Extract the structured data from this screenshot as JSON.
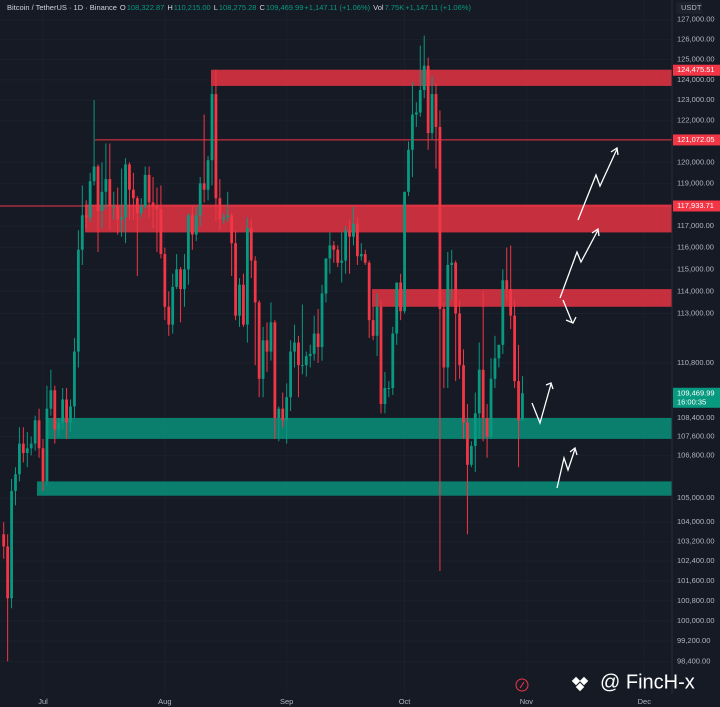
{
  "chart_data": {
    "type": "candlestick",
    "header": {
      "title": "Bitcoin / TetherUS · 1D · Binance",
      "fields": [
        {
          "key": "O",
          "value": "108,322.87"
        },
        {
          "key": "H",
          "value": "110,215.00"
        },
        {
          "key": "L",
          "value": "108,275.28"
        },
        {
          "key": "C",
          "value": "109,469.99"
        },
        {
          "key": "",
          "value": "+1,147.11 (+1.06%)"
        },
        {
          "key": "Vol",
          "value": "7.75K"
        },
        {
          "key": "",
          "value": "+1,147.11 (+1.06%)"
        }
      ]
    },
    "currency": "USDT",
    "watermark": "@ FincH-x",
    "log_scale": true,
    "grid": true,
    "up_color": "#089981",
    "down_color": "#f23645",
    "ylim": [
      96900,
      128000
    ],
    "yticks": [
      {
        "value": 127000,
        "label": "127,000.00"
      },
      {
        "value": 126000,
        "label": "126,000.00"
      },
      {
        "value": 125000,
        "label": "125,000.00"
      },
      {
        "value": 124000,
        "label": "124,000.00"
      },
      {
        "value": 123000,
        "label": "123,000.00"
      },
      {
        "value": 122000,
        "label": "122,000.00"
      },
      {
        "value": 120000,
        "label": "120,000.00"
      },
      {
        "value": 119000,
        "label": "119,000.00"
      },
      {
        "value": 117000,
        "label": "117,000.00"
      },
      {
        "value": 116000,
        "label": "116,000.00"
      },
      {
        "value": 115000,
        "label": "115,000.00"
      },
      {
        "value": 114000,
        "label": "114,000.00"
      },
      {
        "value": 113000,
        "label": "113,000.00"
      },
      {
        "value": 110800,
        "label": "110,800.00"
      },
      {
        "value": 108400,
        "label": "108,400.00"
      },
      {
        "value": 107600,
        "label": "107,600.00"
      },
      {
        "value": 106800,
        "label": "106,800.00"
      },
      {
        "value": 105000,
        "label": "105,000.00"
      },
      {
        "value": 104000,
        "label": "104,000.00"
      },
      {
        "value": 103200,
        "label": "103,200.00"
      },
      {
        "value": 102400,
        "label": "102,400.00"
      },
      {
        "value": 101600,
        "label": "101,600.00"
      },
      {
        "value": 100800,
        "label": "100,800.00"
      },
      {
        "value": 100000,
        "label": "100,000.00"
      },
      {
        "value": 99200,
        "label": "99,200.00"
      },
      {
        "value": 98400,
        "label": "98,400.00"
      }
    ],
    "zones": [
      {
        "low": 123700,
        "high": 124500,
        "color": "#f23645"
      },
      {
        "low": 116700,
        "high": 118000,
        "color": "#f23645"
      },
      {
        "low": 113300,
        "high": 114100,
        "color": "#f23645"
      },
      {
        "low": 107500,
        "high": 108400,
        "color": "#089981"
      },
      {
        "low": 105100,
        "high": 105700,
        "color": "#089981"
      }
    ],
    "price_labels": [
      {
        "value": 124475.51,
        "label": "124,475.51",
        "color": "#f23645"
      },
      {
        "value": 121072.05,
        "label": "121,072.05",
        "color": "#f23645",
        "line": true
      },
      {
        "value": 117933.71,
        "label": "117,933.71",
        "color": "#f23645",
        "line": true
      },
      {
        "value": 109469.99,
        "label": "109,469.99",
        "color": "#089981",
        "sub": "16:00:35"
      }
    ],
    "categories": [
      null,
      null,
      null,
      null,
      null,
      null,
      null,
      null,
      null,
      null,
      "Jul",
      null,
      null,
      null,
      null,
      null,
      null,
      null,
      null,
      null,
      null,
      null,
      null,
      null,
      null,
      null,
      null,
      null,
      null,
      null,
      null,
      null,
      null,
      null,
      null,
      null,
      null,
      null,
      null,
      null,
      null,
      "Aug",
      null,
      null,
      null,
      null,
      null,
      null,
      null,
      null,
      null,
      null,
      null,
      null,
      null,
      null,
      null,
      null,
      null,
      null,
      null,
      null,
      null,
      null,
      null,
      null,
      null,
      null,
      null,
      null,
      null,
      null,
      "Sep",
      null,
      null,
      null,
      null,
      null,
      null,
      null,
      null,
      null,
      null,
      null,
      null,
      null,
      null,
      null,
      null,
      null,
      null,
      null,
      null,
      null,
      null,
      null,
      null,
      null,
      null,
      null,
      null,
      null,
      "Oct",
      null,
      null,
      null,
      null,
      null,
      null,
      null,
      null,
      null,
      null,
      null,
      null,
      null,
      null,
      null,
      null,
      null,
      null,
      null,
      null,
      null,
      null,
      null,
      null,
      null,
      null,
      null,
      null,
      null,
      null,
      "Nov",
      null,
      null,
      null,
      null,
      null,
      null,
      null,
      null,
      null,
      null,
      null,
      null,
      null,
      null,
      null,
      null,
      null,
      null,
      null,
      null,
      null,
      null,
      null,
      null,
      null,
      null,
      null,
      null,
      null,
      "Dec"
    ],
    "candles": [
      [
        103500,
        104000,
        102500,
        103000
      ],
      [
        103000,
        103500,
        98400,
        100900
      ],
      [
        100900,
        105800,
        100500,
        105300
      ],
      [
        105300,
        106300,
        104700,
        106000
      ],
      [
        106000,
        108000,
        105700,
        107300
      ],
      [
        107300,
        108000,
        106500,
        106900
      ],
      [
        106900,
        107800,
        106300,
        107100
      ],
      [
        107100,
        107600,
        106800,
        107300
      ],
      [
        107300,
        108500,
        107000,
        108300
      ],
      [
        108300,
        108800,
        106700,
        107100
      ],
      [
        107100,
        107500,
        105300,
        105700
      ],
      [
        105700,
        109800,
        105500,
        108800
      ],
      [
        108800,
        110500,
        108500,
        109600
      ],
      [
        109600,
        109800,
        107300,
        107900
      ],
      [
        107900,
        108400,
        107600,
        108200
      ],
      [
        108200,
        109700,
        107900,
        109200
      ],
      [
        109200,
        109700,
        107500,
        108200
      ],
      [
        108200,
        109200,
        107800,
        108900
      ],
      [
        108900,
        111900,
        108400,
        111300
      ],
      [
        111300,
        116800,
        110600,
        115900
      ],
      [
        115900,
        118900,
        115200,
        117500
      ],
      [
        117500,
        118200,
        116900,
        117400
      ],
      [
        117400,
        119500,
        117200,
        119100
      ],
      [
        119100,
        123000,
        118900,
        119800
      ],
      [
        119800,
        119900,
        115800,
        117700
      ],
      [
        117700,
        120000,
        116900,
        118600
      ],
      [
        118600,
        120900,
        117800,
        119200
      ],
      [
        119200,
        120900,
        116800,
        117900
      ],
      [
        117900,
        118600,
        117300,
        117900
      ],
      [
        117900,
        118800,
        116600,
        117300
      ],
      [
        117300,
        119700,
        116500,
        117400
      ],
      [
        117400,
        120200,
        116200,
        119900
      ],
      [
        119900,
        120000,
        117300,
        118700
      ],
      [
        118700,
        119500,
        117300,
        118300
      ],
      [
        118300,
        118400,
        114700,
        117600
      ],
      [
        117600,
        118300,
        117400,
        117900
      ],
      [
        117900,
        119800,
        117800,
        119400
      ],
      [
        119400,
        119800,
        117400,
        118100
      ],
      [
        118100,
        119300,
        116900,
        117900
      ],
      [
        117900,
        118800,
        115800,
        117800
      ],
      [
        117800,
        118900,
        115500,
        115700
      ],
      [
        115700,
        116000,
        112700,
        113300
      ],
      [
        113300,
        114000,
        112000,
        112500
      ],
      [
        112500,
        114800,
        112100,
        114200
      ],
      [
        114200,
        115700,
        114100,
        115000
      ],
      [
        115000,
        115100,
        112600,
        114100
      ],
      [
        114100,
        115700,
        113300,
        115000
      ],
      [
        115000,
        117600,
        114300,
        117500
      ],
      [
        117500,
        117900,
        115900,
        116600
      ],
      [
        116600,
        117900,
        116300,
        117500
      ],
      [
        117500,
        119300,
        117000,
        119000
      ],
      [
        119000,
        122300,
        118100,
        118700
      ],
      [
        118700,
        120300,
        118200,
        120100
      ],
      [
        120100,
        123700,
        118900,
        123300
      ],
      [
        123300,
        124500,
        117200,
        118300
      ],
      [
        118300,
        119200,
        116800,
        117300
      ],
      [
        117300,
        117600,
        117100,
        117400
      ],
      [
        117400,
        118600,
        117200,
        117500
      ],
      [
        117500,
        117600,
        114700,
        116200
      ],
      [
        116200,
        116800,
        112700,
        112900
      ],
      [
        112900,
        114600,
        112400,
        114300
      ],
      [
        114300,
        114800,
        112400,
        112500
      ],
      [
        112500,
        117400,
        111700,
        116900
      ],
      [
        116900,
        117300,
        114600,
        115400
      ],
      [
        115400,
        115600,
        110700,
        113500
      ],
      [
        113500,
        113600,
        109300,
        110100
      ],
      [
        110100,
        112400,
        109300,
        111800
      ],
      [
        111800,
        112600,
        110400,
        111300
      ],
      [
        111300,
        113500,
        110900,
        112600
      ],
      [
        112600,
        112700,
        107500,
        108400
      ],
      [
        108400,
        108900,
        107400,
        108800
      ],
      [
        108800,
        109500,
        108000,
        108300
      ],
      [
        108300,
        109900,
        107300,
        109300
      ],
      [
        109300,
        111800,
        108700,
        111300
      ],
      [
        111300,
        112500,
        110600,
        111700
      ],
      [
        111700,
        112000,
        109300,
        110700
      ],
      [
        110700,
        113400,
        110300,
        110700
      ],
      [
        110700,
        111300,
        110200,
        111100
      ],
      [
        111100,
        111600,
        110600,
        111200
      ],
      [
        111200,
        112900,
        110900,
        112100
      ],
      [
        112100,
        113200,
        110800,
        111500
      ],
      [
        111500,
        114300,
        110900,
        113900
      ],
      [
        113900,
        115500,
        113500,
        115500
      ],
      [
        115500,
        116700,
        114800,
        116100
      ],
      [
        116100,
        116300,
        115300,
        115900
      ],
      [
        115900,
        116100,
        115100,
        115300
      ],
      [
        115300,
        116700,
        114400,
        115400
      ],
      [
        115400,
        117000,
        114800,
        116800
      ],
      [
        116800,
        117300,
        114800,
        116500
      ],
      [
        116500,
        117900,
        116100,
        117100
      ],
      [
        117100,
        117400,
        115200,
        115600
      ],
      [
        115600,
        116200,
        115400,
        115700
      ],
      [
        115700,
        115900,
        115200,
        115300
      ],
      [
        115300,
        115400,
        111900,
        112700
      ],
      [
        112700,
        113300,
        111800,
        112000
      ],
      [
        112000,
        113900,
        111100,
        113300
      ],
      [
        113300,
        113600,
        108600,
        109000
      ],
      [
        109000,
        110400,
        108600,
        109700
      ],
      [
        109700,
        110000,
        109300,
        109700
      ],
      [
        109700,
        112400,
        109400,
        112100
      ],
      [
        112100,
        114400,
        111600,
        114400
      ],
      [
        114400,
        114800,
        112700,
        113100
      ],
      [
        113100,
        118600,
        113000,
        118600
      ],
      [
        118600,
        121000,
        118400,
        120600
      ],
      [
        120600,
        123900,
        119300,
        122300
      ],
      [
        122300,
        122900,
        121700,
        122400
      ],
      [
        122400,
        125700,
        122200,
        123500
      ],
      [
        123500,
        126200,
        123100,
        124700
      ],
      [
        124700,
        125100,
        120600,
        121400
      ],
      [
        121400,
        124200,
        121100,
        123300
      ],
      [
        123300,
        123800,
        119700,
        121700
      ],
      [
        121700,
        122500,
        102000,
        113200
      ],
      [
        113200,
        113500,
        109700,
        110600
      ],
      [
        110600,
        115800,
        109700,
        115200
      ],
      [
        115200,
        115900,
        113600,
        115300
      ],
      [
        115300,
        115400,
        110000,
        113000
      ],
      [
        113000,
        113600,
        110100,
        110700
      ],
      [
        110700,
        111400,
        107500,
        108200
      ],
      [
        108200,
        109000,
        103500,
        106400
      ],
      [
        106400,
        107400,
        106300,
        107200
      ],
      [
        107200,
        109500,
        106100,
        108600
      ],
      [
        108600,
        111700,
        107500,
        110500
      ],
      [
        110500,
        114000,
        107400,
        108400
      ],
      [
        108400,
        109000,
        106700,
        107600
      ],
      [
        107600,
        111000,
        107500,
        110100
      ],
      [
        110100,
        112000,
        109700,
        111000
      ],
      [
        111000,
        111600,
        110600,
        111600
      ],
      [
        111600,
        115000,
        111200,
        114500
      ],
      [
        114500,
        116000,
        113600,
        114100
      ],
      [
        114100,
        116100,
        112300,
        112900
      ],
      [
        112900,
        113600,
        109700,
        110000
      ],
      [
        110000,
        111600,
        106300,
        108300
      ],
      [
        108322.87,
        110215.0,
        108275.28,
        109469.99
      ],
      null,
      null,
      null,
      null,
      null,
      null,
      null,
      null,
      null,
      null,
      null,
      null,
      null,
      null,
      null,
      null,
      null,
      null,
      null,
      null,
      null,
      null,
      null,
      null,
      null,
      null,
      null,
      null,
      null,
      null,
      null
    ]
  }
}
